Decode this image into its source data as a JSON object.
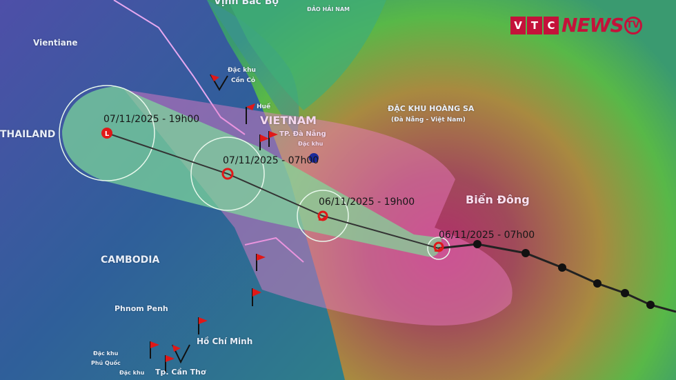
{
  "logo": {
    "letters": [
      "V",
      "T",
      "C"
    ],
    "news": "NEWS",
    "tv": "TV",
    "color": "#c4123a"
  },
  "labels": {
    "gulf": "Vịnh Bắc Bộ",
    "hainan": "ĐẢO HẢI NAM",
    "vientiane": "Vientiane",
    "thailand": "THAILAND",
    "con_co_1": "Đặc khu",
    "con_co_2": "Cồn Cỏ",
    "hue": "Huế",
    "vietnam": "VIETNAM",
    "danang": "TP. Đà Nẵng",
    "dac_khu": "Đặc khu",
    "hoang_sa": "ĐẶC KHU HOÀNG SA",
    "hoang_sa_sub": "(Đà Nẵng - Việt Nam)",
    "bien_dong": "Biển Đông",
    "cambodia": "CAMBODIA",
    "phnom_penh": "Phnom Penh",
    "hcm": "Hồ Chí Minh",
    "phu_quoc_1": "Đặc khu",
    "phu_quoc_2": "Phú Quốc",
    "dac_khu_2": "Đặc khu",
    "can_tho": "Tp. Cần Thơ"
  },
  "forecast_points": [
    {
      "time": "06/11/2025 - 07h00",
      "symbol": "typhoon"
    },
    {
      "time": "06/11/2025 - 19h00",
      "symbol": "typhoon"
    },
    {
      "time": "07/11/2025 - 07h00",
      "symbol": "tropical-depression"
    },
    {
      "time": "07/11/2025 - 19h00",
      "symbol": "low-pressure",
      "symbol_text": "L"
    }
  ],
  "colors": {
    "track": "#333333",
    "marker": "#e01818",
    "cone": "#f07cc8",
    "uncertainty": "#7fdc9a"
  }
}
